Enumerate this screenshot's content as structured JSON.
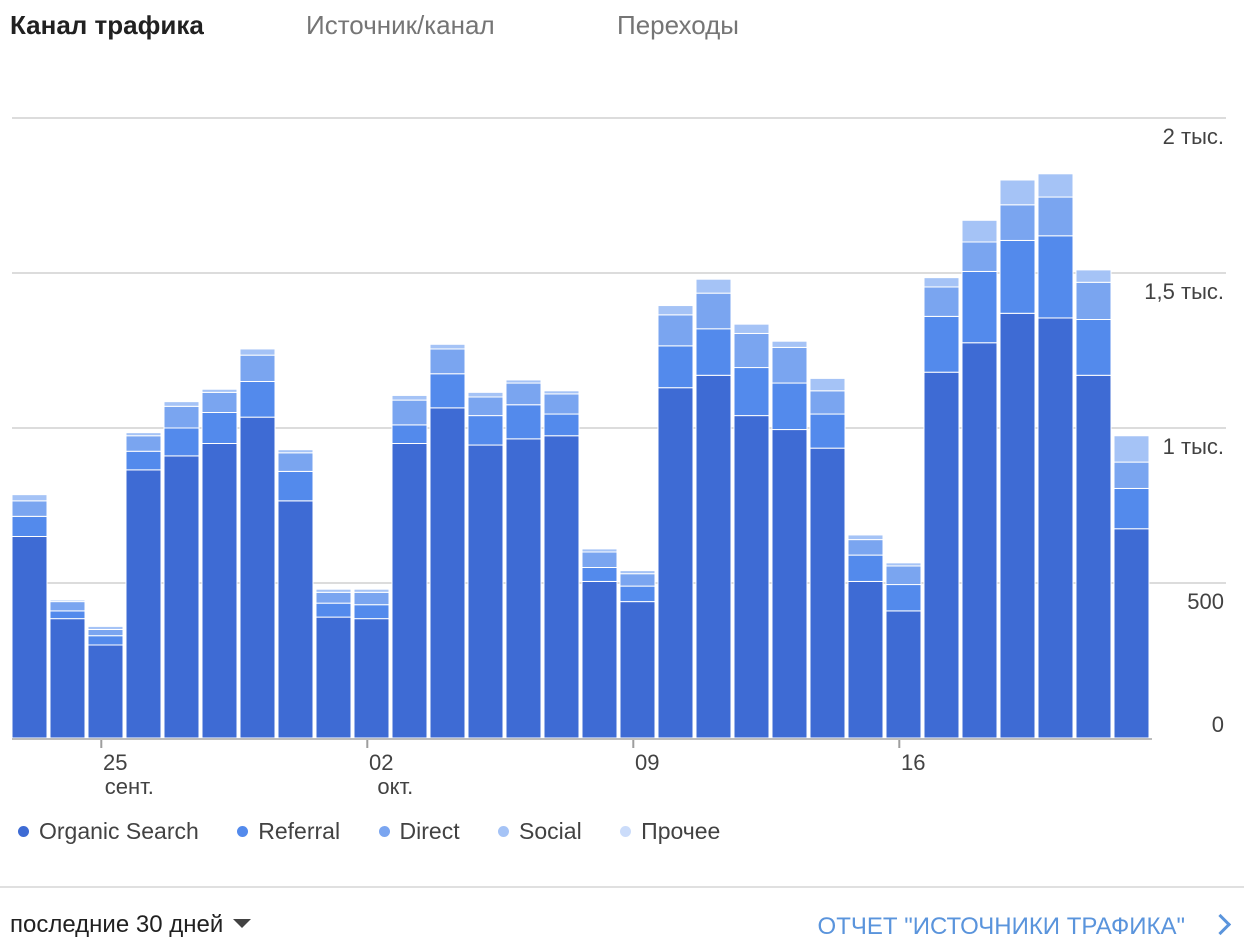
{
  "tabs": [
    {
      "label": "Канал трафика",
      "active": true
    },
    {
      "label": "Источник/канал",
      "active": false
    },
    {
      "label": "Переходы",
      "active": false
    }
  ],
  "chart_data": {
    "type": "bar",
    "stacked": true,
    "ylim": [
      0,
      2000
    ],
    "y_ticks": [
      0,
      500,
      1000,
      1500,
      2000
    ],
    "y_tick_labels": [
      "0",
      "500",
      "1 тыс.",
      "1,5 тыс.",
      "2 тыс."
    ],
    "y_axis_side": "right",
    "grid": true,
    "x_tick_labels": [
      {
        "index": 2,
        "day": "25",
        "month": "сент."
      },
      {
        "index": 9,
        "day": "02",
        "month": "окт."
      },
      {
        "index": 16,
        "day": "09",
        "month": ""
      },
      {
        "index": 23,
        "day": "16",
        "month": ""
      }
    ],
    "series": [
      {
        "name": "Organic Search",
        "color": "#3e6bd4",
        "values": [
          650,
          385,
          300,
          865,
          910,
          950,
          1035,
          765,
          390,
          385,
          950,
          1065,
          945,
          965,
          975,
          505,
          440,
          1130,
          1170,
          1040,
          995,
          935,
          505,
          410,
          1180,
          1275,
          1370,
          1355,
          1170,
          675
        ]
      },
      {
        "name": "Referral",
        "color": "#538aec",
        "values": [
          65,
          25,
          30,
          60,
          90,
          100,
          115,
          95,
          45,
          45,
          60,
          110,
          95,
          110,
          70,
          45,
          50,
          135,
          150,
          155,
          150,
          110,
          85,
          85,
          180,
          230,
          235,
          265,
          180,
          130
        ]
      },
      {
        "name": "Direct",
        "color": "#7aa5f0",
        "values": [
          50,
          30,
          20,
          50,
          70,
          65,
          85,
          60,
          35,
          40,
          80,
          80,
          60,
          70,
          65,
          50,
          40,
          100,
          115,
          110,
          115,
          75,
          50,
          60,
          95,
          95,
          115,
          125,
          120,
          85
        ]
      },
      {
        "name": "Social",
        "color": "#a5c3f6",
        "values": [
          20,
          5,
          10,
          10,
          15,
          10,
          20,
          10,
          10,
          10,
          15,
          15,
          15,
          10,
          10,
          10,
          10,
          30,
          45,
          30,
          20,
          40,
          15,
          10,
          30,
          70,
          80,
          75,
          40,
          85
        ]
      },
      {
        "name": "Прочее",
        "color": "#cbdcfa",
        "values": [
          0,
          0,
          0,
          0,
          0,
          0,
          0,
          0,
          0,
          0,
          0,
          0,
          0,
          0,
          0,
          0,
          0,
          0,
          0,
          0,
          0,
          0,
          0,
          0,
          0,
          0,
          0,
          0,
          0,
          0
        ]
      }
    ]
  },
  "footer": {
    "range_label": "последние 30 дней",
    "report_link": "ОТЧЕТ \"ИСТОЧНИКИ ТРАФИКА\""
  }
}
